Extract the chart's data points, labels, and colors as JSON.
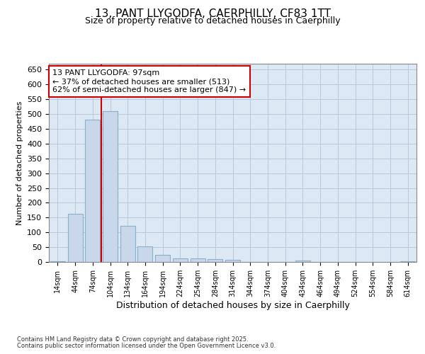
{
  "title_line1": "13, PANT LLYGODFA, CAERPHILLY, CF83 1TT",
  "title_line2": "Size of property relative to detached houses in Caerphilly",
  "xlabel": "Distribution of detached houses by size in Caerphilly",
  "ylabel": "Number of detached properties",
  "annotation_line1": "13 PANT LLYGODFA: 97sqm",
  "annotation_line2": "← 37% of detached houses are smaller (513)",
  "annotation_line3": "62% of semi-detached houses are larger (847) →",
  "footer_line1": "Contains HM Land Registry data © Crown copyright and database right 2025.",
  "footer_line2": "Contains public sector information licensed under the Open Government Licence v3.0.",
  "categories": [
    "14sqm",
    "44sqm",
    "74sqm",
    "104sqm",
    "134sqm",
    "164sqm",
    "194sqm",
    "224sqm",
    "254sqm",
    "284sqm",
    "314sqm",
    "344sqm",
    "374sqm",
    "404sqm",
    "434sqm",
    "464sqm",
    "494sqm",
    "524sqm",
    "554sqm",
    "584sqm",
    "614sqm"
  ],
  "values": [
    3,
    162,
    482,
    510,
    122,
    52,
    24,
    13,
    12,
    9,
    7,
    0,
    0,
    0,
    5,
    0,
    0,
    0,
    0,
    0,
    3
  ],
  "bar_color": "#c8d8ea",
  "bar_edge_color": "#8aafc8",
  "vline_color": "#cc0000",
  "annotation_box_color": "#cc0000",
  "background_color": "#ffffff",
  "grid_color": "#b8c8dc",
  "ax_facecolor": "#dce8f4",
  "ylim": [
    0,
    670
  ],
  "yticks": [
    0,
    50,
    100,
    150,
    200,
    250,
    300,
    350,
    400,
    450,
    500,
    550,
    600,
    650
  ],
  "title1_fontsize": 11,
  "title2_fontsize": 9,
  "ylabel_fontsize": 8,
  "xlabel_fontsize": 9,
  "tick_fontsize": 8,
  "xtick_fontsize": 7,
  "footer_fontsize": 6,
  "annot_fontsize": 8
}
